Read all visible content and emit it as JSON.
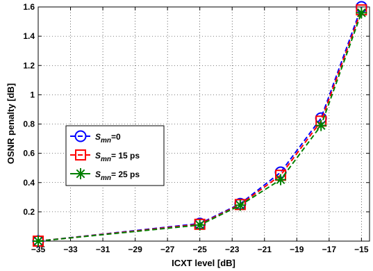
{
  "chart_data": {
    "type": "line",
    "xlabel": "ICXT level [dB]",
    "ylabel": "OSNR penalty [dB]",
    "xlim": [
      -35,
      -14.5
    ],
    "ylim": [
      0,
      1.6
    ],
    "xticks": [
      -35,
      -33,
      -31,
      -29,
      -27,
      -25,
      -23,
      -21,
      -19,
      -17,
      -15
    ],
    "xtick_labels": [
      "−35",
      "−33",
      "−31",
      "−29",
      "−27",
      "−25",
      "−23",
      "−21",
      "−19",
      "−17",
      "−15"
    ],
    "yticks": [
      0,
      0.2,
      0.4,
      0.6,
      0.8,
      1.0,
      1.2,
      1.4,
      1.6
    ],
    "ytick_labels": [
      "",
      "0.2",
      "0.4",
      "0.6",
      "0.8",
      "1",
      "1.2",
      "1.4",
      "1.6"
    ],
    "grid": true,
    "legend_position": "center-left",
    "series": [
      {
        "name": "S_mn=0",
        "legend_label": {
          "symbol": "S",
          "sub": "mn",
          "rest": "=0"
        },
        "color": "#0000ff",
        "marker": "circle",
        "x": [
          -35,
          -25,
          -22.5,
          -20,
          -17.5,
          -15
        ],
        "y": [
          0.0,
          0.12,
          0.255,
          0.47,
          0.84,
          1.6
        ]
      },
      {
        "name": "S_mn= 15 ps",
        "legend_label": {
          "symbol": "S",
          "sub": "mn",
          "rest": "= 15 ps"
        },
        "color": "#ff0000",
        "marker": "square",
        "x": [
          -35,
          -25,
          -22.5,
          -20,
          -17.5,
          -15
        ],
        "y": [
          0.0,
          0.115,
          0.25,
          0.45,
          0.82,
          1.58
        ]
      },
      {
        "name": "S_mn= 25 ps",
        "legend_label": {
          "symbol": "S",
          "sub": "mn",
          "rest": "= 25 ps"
        },
        "color": "#007f00",
        "marker": "star",
        "x": [
          -35,
          -25,
          -22.5,
          -20,
          -17.5,
          -15
        ],
        "y": [
          0.0,
          0.11,
          0.245,
          0.42,
          0.79,
          1.56
        ]
      }
    ]
  }
}
